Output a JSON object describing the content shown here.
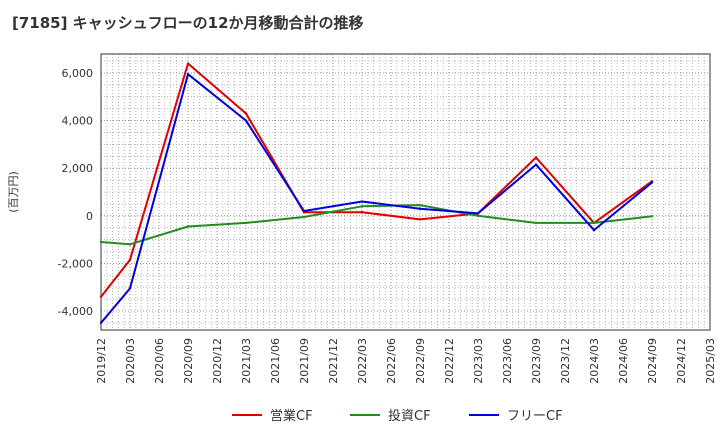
{
  "chart_data": {
    "type": "line",
    "title": "[7185]  キャッシュフローの12か月移動合計の推移",
    "ylabel": "(百万円)",
    "xlabel": "",
    "ylim": [
      -4800,
      6800
    ],
    "yticks": [
      -4000,
      -2000,
      0,
      2000,
      4000,
      6000
    ],
    "ytick_labels": [
      "-4,000",
      "-2,000",
      "0",
      "2,000",
      "4,000",
      "6,000"
    ],
    "categories": [
      "2019/12",
      "2020/03",
      "2020/06",
      "2020/09",
      "2020/12",
      "2021/03",
      "2021/06",
      "2021/09",
      "2021/12",
      "2022/03",
      "2022/06",
      "2022/09",
      "2022/12",
      "2023/03",
      "2023/06",
      "2023/09",
      "2023/12",
      "2024/03",
      "2024/06",
      "2024/09",
      "2024/12",
      "2025/03"
    ],
    "series": [
      {
        "name": "営業CF",
        "color": "#e00000",
        "values": [
          -3400,
          -1850,
          null,
          6400,
          null,
          4300,
          null,
          150,
          null,
          150,
          null,
          -150,
          null,
          100,
          null,
          2450,
          null,
          -300,
          null,
          1450,
          null,
          null
        ]
      },
      {
        "name": "投資CF",
        "color": "#228b22",
        "values": [
          -1100,
          -1200,
          null,
          -450,
          null,
          -300,
          null,
          -50,
          null,
          400,
          null,
          450,
          null,
          0,
          null,
          -300,
          null,
          -300,
          null,
          -20,
          null,
          null
        ]
      },
      {
        "name": "フリーCF",
        "color": "#0000dd",
        "values": [
          -4500,
          -3050,
          null,
          5950,
          null,
          4000,
          null,
          200,
          null,
          600,
          null,
          300,
          null,
          100,
          null,
          2150,
          null,
          -600,
          null,
          1400,
          null,
          null
        ]
      }
    ],
    "grid": true,
    "legend_position": "bottom-center"
  }
}
